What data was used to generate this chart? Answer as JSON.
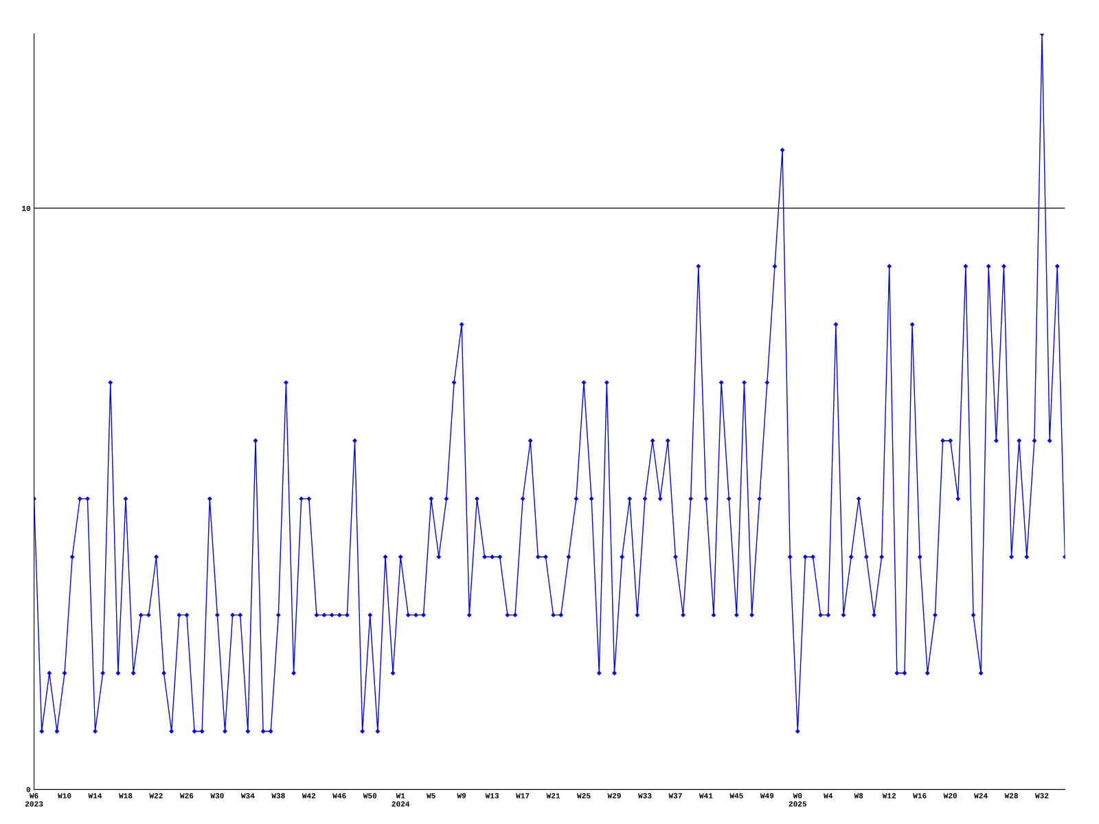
{
  "chart_data": {
    "type": "line",
    "categories": [
      "W6\n2023",
      null,
      null,
      null,
      "W10",
      null,
      null,
      null,
      "W14",
      null,
      null,
      null,
      "W18",
      null,
      null,
      null,
      "W22",
      null,
      null,
      null,
      "W26",
      null,
      null,
      null,
      "W30",
      null,
      null,
      null,
      "W34",
      null,
      null,
      null,
      "W38",
      null,
      null,
      null,
      "W42",
      null,
      null,
      null,
      "W46",
      null,
      null,
      null,
      "W50",
      null,
      null,
      null,
      "W1\n2024",
      null,
      null,
      null,
      "W5",
      null,
      null,
      null,
      "W9",
      null,
      null,
      null,
      "W13",
      null,
      null,
      null,
      "W17",
      null,
      null,
      null,
      "W21",
      null,
      null,
      null,
      "W25",
      null,
      null,
      null,
      "W29",
      null,
      null,
      null,
      "W33",
      null,
      null,
      null,
      "W37",
      null,
      null,
      null,
      "W41",
      null,
      null,
      null,
      "W45",
      null,
      null,
      null,
      "W49",
      null,
      null,
      null,
      "W0\n2025",
      null,
      null,
      null,
      "W4",
      null,
      null,
      null,
      "W8",
      null,
      null,
      null,
      "W12",
      null,
      null,
      null,
      "W16",
      null,
      null,
      null,
      "W20",
      null,
      null,
      null,
      "W24",
      null,
      null,
      null,
      "W28",
      null,
      null,
      null,
      "W32",
      null,
      null,
      null
    ],
    "series": [
      {
        "color": "#0000ff",
        "values": [
          5,
          1,
          2,
          1,
          2,
          4,
          5,
          5,
          1,
          2,
          7,
          2,
          5,
          2,
          3,
          3,
          4,
          2,
          1,
          3,
          3,
          1,
          1,
          5,
          3,
          1,
          3,
          3,
          1,
          6,
          1,
          1,
          3,
          7,
          2,
          5,
          5,
          3,
          3,
          3,
          3,
          3,
          6,
          1,
          3,
          1,
          4,
          2,
          4,
          3,
          3,
          3,
          5,
          4,
          5,
          7,
          8,
          3,
          5,
          4,
          4,
          4,
          3,
          3,
          5,
          6,
          4,
          4,
          3,
          3,
          4,
          5,
          7,
          5,
          2,
          7,
          2,
          4,
          5,
          3,
          5,
          6,
          5,
          6,
          4,
          3,
          5,
          9,
          5,
          3,
          7,
          5,
          3,
          7,
          3,
          5,
          7,
          9,
          11,
          4,
          1,
          4,
          4,
          3,
          3,
          8,
          3,
          4,
          5,
          4,
          3,
          4,
          9,
          2,
          2,
          8,
          4,
          2,
          3,
          6,
          6,
          5,
          9,
          3,
          2,
          9,
          6,
          9,
          4,
          6,
          4,
          6,
          13,
          6,
          9,
          4
        ]
      }
    ],
    "ylim": [
      0,
      13
    ],
    "yticks": [
      0,
      10
    ],
    "grid": "y",
    "marker": "diamond",
    "line_style": "solid"
  }
}
